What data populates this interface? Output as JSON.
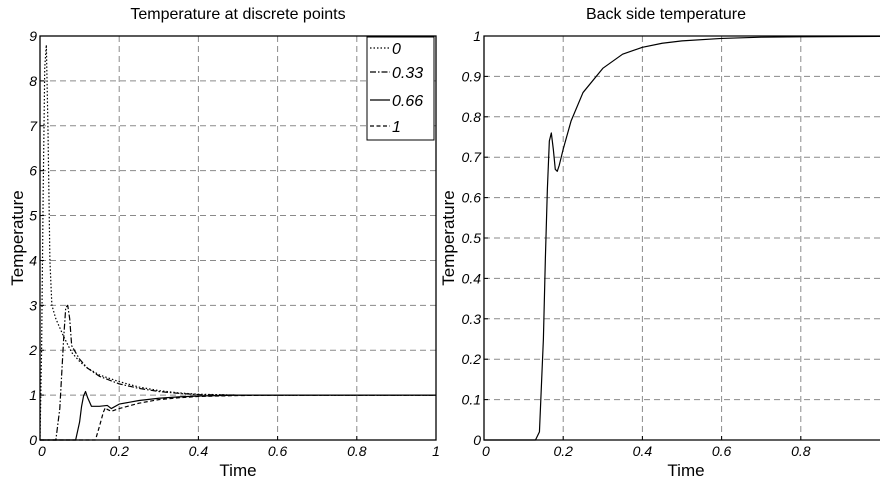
{
  "chart_data": [
    {
      "type": "line",
      "title": "Temperature at discrete points",
      "xlabel": "Time",
      "ylabel": "Temperature",
      "xlim": [
        0,
        1
      ],
      "ylim": [
        0,
        9
      ],
      "xticks": [
        "0",
        "0.2",
        "0.4",
        "0.6",
        "0.8",
        "1"
      ],
      "yticks": [
        "0",
        "1",
        "2",
        "3",
        "4",
        "5",
        "6",
        "7",
        "8",
        "9"
      ],
      "grid": true,
      "legend_position": "top-right",
      "series": [
        {
          "name": "0",
          "line_style": "dotted",
          "x": [
            0.0,
            0.004,
            0.008,
            0.012,
            0.016,
            0.02,
            0.025,
            0.03,
            0.04,
            0.06,
            0.08,
            0.1,
            0.12,
            0.15,
            0.2,
            0.25,
            0.3,
            0.35,
            0.4,
            0.5,
            0.6,
            0.8,
            1.0
          ],
          "values": [
            0,
            2.0,
            5.5,
            8.3,
            8.8,
            7.0,
            4.0,
            3.0,
            2.7,
            2.3,
            1.95,
            1.75,
            1.6,
            1.45,
            1.3,
            1.18,
            1.1,
            1.05,
            1.02,
            1.0,
            1.0,
            1.0,
            1.0
          ]
        },
        {
          "name": "0.33",
          "line_style": "dash-dot",
          "x": [
            0.0,
            0.04,
            0.05,
            0.06,
            0.065,
            0.07,
            0.075,
            0.08,
            0.1,
            0.12,
            0.15,
            0.2,
            0.25,
            0.3,
            0.35,
            0.4,
            0.5,
            0.6,
            0.8,
            1.0
          ],
          "values": [
            0,
            0,
            0.7,
            2.3,
            2.95,
            3.0,
            2.7,
            2.1,
            1.8,
            1.6,
            1.42,
            1.25,
            1.15,
            1.08,
            1.04,
            1.01,
            1.0,
            1.0,
            1.0,
            1.0
          ]
        },
        {
          "name": "0.66",
          "line_style": "solid",
          "x": [
            0.0,
            0.09,
            0.1,
            0.105,
            0.11,
            0.115,
            0.12,
            0.13,
            0.15,
            0.17,
            0.18,
            0.2,
            0.25,
            0.3,
            0.35,
            0.4,
            0.5,
            0.6,
            0.8,
            1.0
          ],
          "values": [
            0,
            0,
            0.4,
            0.75,
            0.98,
            1.08,
            0.95,
            0.75,
            0.75,
            0.77,
            0.7,
            0.8,
            0.88,
            0.93,
            0.96,
            0.98,
            1.0,
            1.0,
            1.0,
            1.0
          ]
        },
        {
          "name": "1",
          "line_style": "dashed",
          "x": [
            0.0,
            0.14,
            0.15,
            0.16,
            0.165,
            0.17,
            0.18,
            0.2,
            0.25,
            0.3,
            0.35,
            0.4,
            0.5,
            0.6,
            0.8,
            1.0
          ],
          "values": [
            0,
            0,
            0.3,
            0.62,
            0.72,
            0.68,
            0.64,
            0.7,
            0.82,
            0.9,
            0.94,
            0.97,
            0.99,
            1.0,
            1.0,
            1.0
          ]
        }
      ]
    },
    {
      "type": "line",
      "title": "Back side temperature",
      "xlabel": "Time",
      "ylabel": "Temperature",
      "xlim": [
        0,
        1
      ],
      "ylim": [
        0,
        1
      ],
      "xticks": [
        "0",
        "0.2",
        "0.4",
        "0.6",
        "0.8"
      ],
      "yticks": [
        "0",
        "0.1",
        "0.2",
        "0.3",
        "0.4",
        "0.5",
        "0.6",
        "0.7",
        "0.8",
        "0.9",
        "1"
      ],
      "grid": true,
      "series": [
        {
          "line_style": "solid",
          "x": [
            0.0,
            0.13,
            0.14,
            0.15,
            0.155,
            0.16,
            0.165,
            0.17,
            0.175,
            0.18,
            0.185,
            0.19,
            0.2,
            0.22,
            0.25,
            0.3,
            0.35,
            0.4,
            0.45,
            0.5,
            0.6,
            0.7,
            0.8,
            1.0
          ],
          "values": [
            0,
            0,
            0.02,
            0.25,
            0.45,
            0.62,
            0.74,
            0.76,
            0.72,
            0.67,
            0.665,
            0.68,
            0.72,
            0.79,
            0.86,
            0.92,
            0.955,
            0.972,
            0.982,
            0.988,
            0.994,
            0.997,
            0.998,
            0.999
          ]
        }
      ]
    }
  ]
}
